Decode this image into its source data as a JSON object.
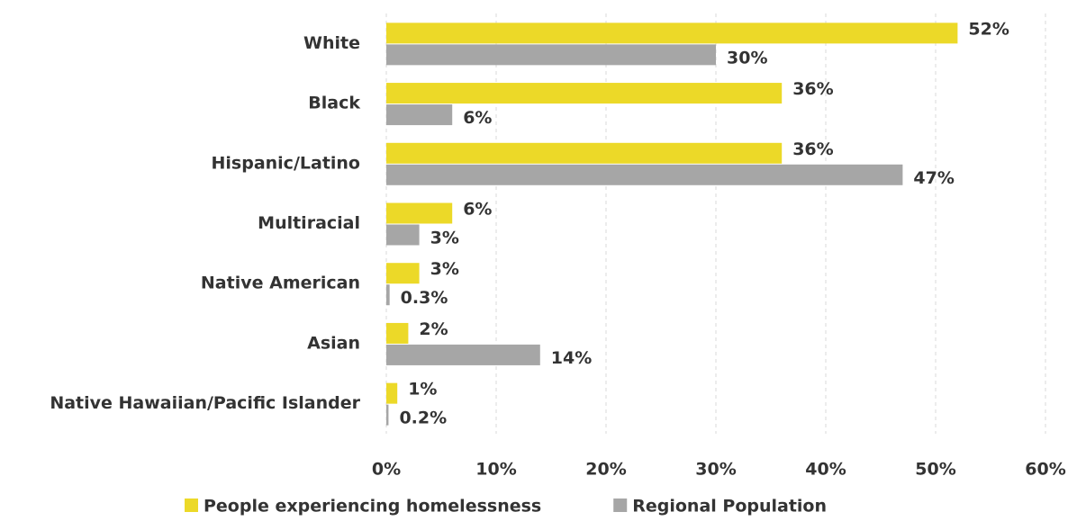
{
  "chart_data": {
    "type": "barh",
    "categories": [
      "White",
      "Black",
      "Hispanic/Latino",
      "Multiracial",
      "Native American",
      "Asian",
      "Native Hawaiian/Pacific Islander"
    ],
    "series": [
      {
        "name": "People experiencing homelessness",
        "color": "#ecd928",
        "values": [
          52,
          36,
          36,
          6,
          3,
          2,
          1
        ],
        "value_labels": [
          "52%",
          "36%",
          "36%",
          "6%",
          "3%",
          "2%",
          "1%"
        ]
      },
      {
        "name": "Regional Population",
        "color": "#a6a6a6",
        "values": [
          30,
          6,
          47,
          3,
          0.3,
          14,
          0.2
        ],
        "value_labels": [
          "30%",
          "6%",
          "47%",
          "3%",
          "0.3%",
          "14%",
          "0.2%"
        ]
      }
    ],
    "xlim": [
      0,
      60
    ],
    "xticks": [
      {
        "value": 0,
        "label": "0%"
      },
      {
        "value": 10,
        "label": "10%"
      },
      {
        "value": 20,
        "label": "20%"
      },
      {
        "value": 30,
        "label": "30%"
      },
      {
        "value": 40,
        "label": "40%"
      },
      {
        "value": 50,
        "label": "50%"
      },
      {
        "value": 60,
        "label": "60%"
      }
    ],
    "grid": true,
    "legend": "bottom"
  }
}
